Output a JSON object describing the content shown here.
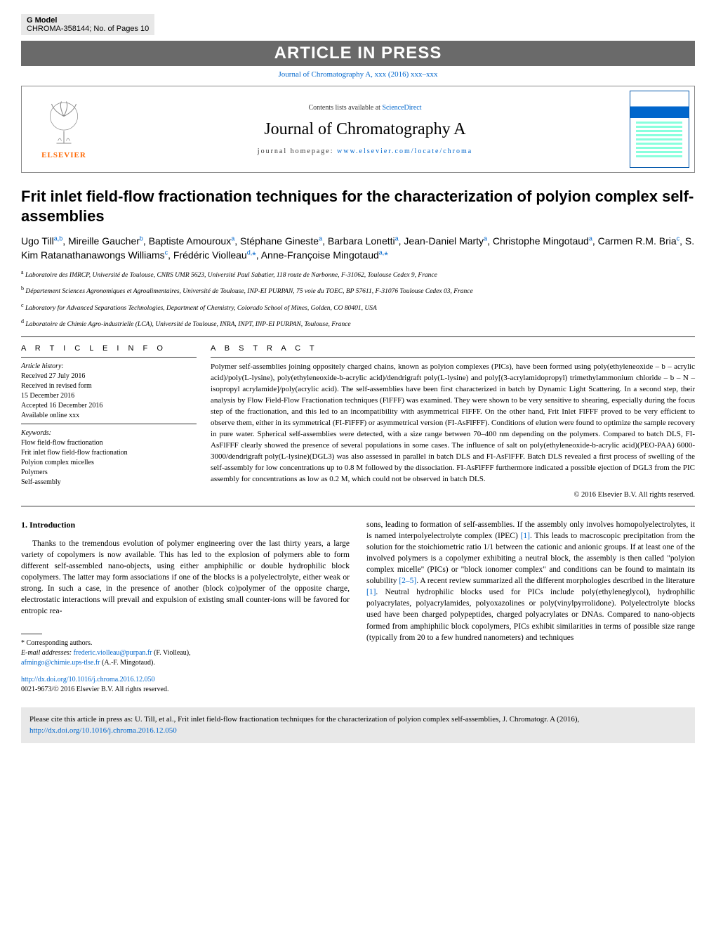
{
  "gmodel": {
    "label": "G Model",
    "ref": "CHROMA-358144;   No. of Pages 10"
  },
  "banner": "ARTICLE IN PRESS",
  "journal_link": "Journal of Chromatography A, xxx (2016) xxx–xxx",
  "header": {
    "contents_prefix": "Contents lists available at ",
    "contents_link": "ScienceDirect",
    "journal_title": "Journal of Chromatography A",
    "homepage_prefix": "journal homepage: ",
    "homepage_link": "www.elsevier.com/locate/chroma",
    "elsevier": "ELSEVIER"
  },
  "title": "Frit inlet field-flow fractionation techniques for the characterization of polyion complex self-assemblies",
  "authors_html": "Ugo Till<sup>a,b</sup>, Mireille Gaucher<sup>b</sup>, Baptiste Amouroux<sup>a</sup>, Stéphane Gineste<sup>a</sup>, Barbara Lonetti<sup>a</sup>, Jean-Daniel Marty<sup>a</sup>, Christophe Mingotaud<sup>a</sup>, Carmen R.M. Bria<sup>c</sup>, S. Kim Ratanathanawongs Williams<sup>c</sup>, Frédéric Violleau<sup>d,</sup><span class='ast'>*</span>, Anne-Françoise Mingotaud<sup>a,</sup><span class='ast'>*</span>",
  "affiliations": [
    {
      "sup": "a",
      "text": "Laboratoire des IMRCP, Université de Toulouse, CNRS UMR 5623, Université Paul Sabatier, 118 route de Narbonne, F-31062, Toulouse Cedex 9, France"
    },
    {
      "sup": "b",
      "text": "Département Sciences Agronomiques et Agroalimentaires, Université de Toulouse, INP-EI PURPAN, 75 voie du TOEC, BP 57611, F-31076 Toulouse Cedex 03, France"
    },
    {
      "sup": "c",
      "text": "Laboratory for Advanced Separations Technologies, Department of Chemistry, Colorado School of Mines, Golden, CO 80401, USA"
    },
    {
      "sup": "d",
      "text": "Laboratoire de Chimie Agro-industrielle (LCA), Université de Toulouse, INRA, INPT, INP-EI PURPAN, Toulouse, France"
    }
  ],
  "article_info": {
    "heading": "A R T I C L E   I N F O",
    "history_label": "Article history:",
    "history": [
      "Received 27 July 2016",
      "Received in revised form",
      "15 December 2016",
      "Accepted 16 December 2016",
      "Available online xxx"
    ],
    "keywords_label": "Keywords:",
    "keywords": [
      "Flow field-flow fractionation",
      "Frit inlet flow field-flow fractionation",
      "Polyion complex micelles",
      "Polymers",
      "Self-assembly"
    ]
  },
  "abstract": {
    "heading": "A B S T R A C T",
    "text": "Polymer self-assemblies joining oppositely charged chains, known as polyion complexes (PICs), have been formed using poly(ethyleneoxide – b – acrylic acid)/poly(L-lysine), poly(ethyleneoxide-b-acrylic acid)/dendrigraft poly(L-lysine) and poly[(3-acrylamidopropyl) trimethylammonium chloride – b – N – isopropyl acrylamide]/poly(acrylic acid). The self-assemblies have been first characterized in batch by Dynamic Light Scattering. In a second step, their analysis by Flow Field-Flow Fractionation techniques (FlFFF) was examined. They were shown to be very sensitive to shearing, especially during the focus step of the fractionation, and this led to an incompatibility with asymmetrical FlFFF. On the other hand, Frit Inlet FlFFF proved to be very efficient to observe them, either in its symmetrical (FI-FlFFF) or asymmetrical version (FI-AsFlFFF). Conditions of elution were found to optimize the sample recovery in pure water. Spherical self-assemblies were detected, with a size range between 70–400 nm depending on the polymers. Compared to batch DLS, FI-AsFlFFF clearly showed the presence of several populations in some cases. The influence of salt on poly(ethyleneoxide-b-acrylic acid)(PEO-PAA) 6000-3000/dendrigraft poly(L-lysine)(DGL3) was also assessed in parallel in batch DLS and FI-AsFlFFF. Batch DLS revealed a first process of swelling of the self-assembly for low concentrations up to 0.8 M followed by the dissociation. FI-AsFlFFF furthermore indicated a possible ejection of DGL3 from the PIC assembly for concentrations as low as 0.2 M, which could not be observed in batch DLS.",
    "copyright": "© 2016 Elsevier B.V. All rights reserved."
  },
  "section": {
    "num": "1.",
    "title": "Introduction"
  },
  "body": {
    "left": "Thanks to the tremendous evolution of polymer engineering over the last thirty years, a large variety of copolymers is now available. This has led to the explosion of polymers able to form different self-assembled nano-objects, using either amphiphilic or double hydrophilic block copolymers. The latter may form associations if one of the blocks is a polyelectrolyte, either weak or strong. In such a case, in the presence of another (block co)polymer of the opposite charge, electrostatic interactions will prevail and expulsion of existing small counter-ions will be favored for entropic rea-",
    "right_pre": "sons, leading to formation of self-assemblies. If the assembly only involves homopolyelectrolytes, it is named interpolyelectrolyte complex (IPEC) ",
    "ref1": "[1]",
    "right_mid1": ". This leads to macroscopic precipitation from the solution for the stoichiometric ratio 1/1 between the cationic and anionic groups. If at least one of the involved polymers is a copolymer exhibiting a neutral block, the assembly is then called \"polyion complex micelle\" (PICs) or \"block ionomer complex\" and conditions can be found to maintain its solubility ",
    "ref25": "[2–5]",
    "right_mid2": ". A recent review summarized all the different morphologies described in the literature ",
    "ref1b": "[1]",
    "right_post": ". Neutral hydrophilic blocks used for PICs include poly(ethyleneglycol), hydrophilic polyacrylates, polyacrylamides, polyoxazolines or poly(vinylpyrrolidone). Polyelectrolyte blocks used have been charged polypeptides, charged polyacrylates or DNAs. Compared to nano-objects formed from amphiphilic block copolymers, PICs exhibit similarities in terms of possible size range (typically from 20 to a few hundred nanometers) and techniques"
  },
  "corr": {
    "label": "* Corresponding authors.",
    "email_label": "E-mail addresses: ",
    "email1": "frederic.violleau@purpan.fr",
    "name1": " (F. Violleau),",
    "email2": "afmingo@chimie.ups-tlse.fr",
    "name2": " (A.-F. Mingotaud)."
  },
  "doi": {
    "link": "http://dx.doi.org/10.1016/j.chroma.2016.12.050",
    "issn": "0021-9673/© 2016 Elsevier B.V. All rights reserved."
  },
  "citebox": {
    "pre": "Please cite this article in press as: U. Till, et al., Frit inlet field-flow fractionation techniques for the characterization of polyion complex self-assemblies, J. Chromatogr. A (2016), ",
    "link": "http://dx.doi.org/10.1016/j.chroma.2016.12.050"
  }
}
